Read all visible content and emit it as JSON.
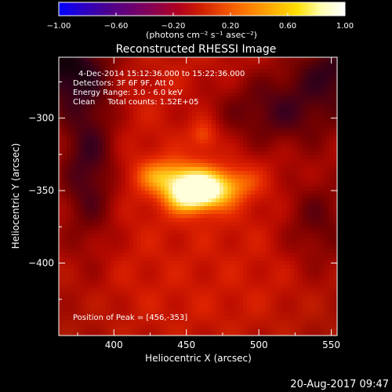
{
  "colorbar": {
    "ticks": [
      {
        "value": -1.0,
        "label": "−1.00"
      },
      {
        "value": -0.6,
        "label": "−0.60"
      },
      {
        "value": -0.2,
        "label": "−0.20"
      },
      {
        "value": 0.2,
        "label": "0.20"
      },
      {
        "value": 0.6,
        "label": "0.60"
      },
      {
        "value": 1.0,
        "label": "1.00"
      }
    ],
    "units": "(photons cm⁻² s⁻¹ asec⁻²)",
    "colors": [
      "#0000ff",
      "#2a00c8",
      "#4a0090",
      "#6a0072",
      "#8a0050",
      "#b00020",
      "#d02000",
      "#f05000",
      "#ff8000",
      "#ffb000",
      "#ffe000",
      "#ffffb0",
      "#ffffff"
    ]
  },
  "chart_data": {
    "type": "heatmap",
    "title": "Reconstructed RHESSI Image",
    "xlabel": "Heliocentric X (arcsec)",
    "ylabel": "Heliocentric Y (arcsec)",
    "xlim": [
      362,
      554
    ],
    "ylim": [
      -450,
      -258
    ],
    "x_ticks": [
      {
        "value": 400,
        "label": "400"
      },
      {
        "value": 450,
        "label": "450"
      },
      {
        "value": 500,
        "label": "500"
      },
      {
        "value": 550,
        "label": "550"
      }
    ],
    "y_ticks": [
      {
        "value": -300,
        "label": "−300"
      },
      {
        "value": -350,
        "label": "−350"
      },
      {
        "value": -400,
        "label": "−400"
      }
    ],
    "peak": [
      456,
      -353
    ],
    "info_lines": [
      "4-Dec-2014 15:12:36.000 to 15:22:36.000",
      "Detectors: 3F 6F 9F, Att 0",
      "Energy Range: 3.0 - 6.0 keV",
      "Clean     Total counts: 1.52E+05"
    ],
    "peak_label": "Position of Peak = [456,-353]"
  },
  "footer": {
    "timestamp": "20-Aug-2017 09:47"
  }
}
